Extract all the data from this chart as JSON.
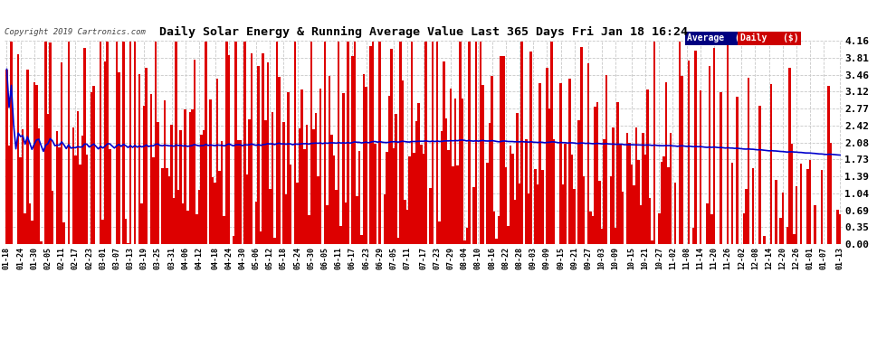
{
  "title": "Daily Solar Energy & Running Average Value Last 365 Days Fri Jan 18 16:24",
  "copyright": "Copyright 2019 Cartronics.com",
  "background_color": "#ffffff",
  "plot_background": "#ffffff",
  "grid_color": "#c8c8c8",
  "bar_color": "#dd0000",
  "line_color": "#0000cc",
  "ylim": [
    0.0,
    4.16
  ],
  "yticks": [
    0.0,
    0.35,
    0.69,
    1.04,
    1.39,
    1.73,
    2.08,
    2.42,
    2.77,
    3.12,
    3.46,
    3.81,
    4.16
  ],
  "legend_avg_bg": "#000080",
  "legend_daily_bg": "#cc0000",
  "legend_avg_text": "Average  ($)",
  "legend_daily_text": "Daily   ($)",
  "xtick_labels": [
    "01-18",
    "01-24",
    "01-30",
    "02-05",
    "02-11",
    "02-17",
    "02-23",
    "03-01",
    "03-07",
    "03-13",
    "03-19",
    "03-25",
    "03-31",
    "04-06",
    "04-12",
    "04-18",
    "04-24",
    "04-30",
    "05-06",
    "05-12",
    "05-18",
    "05-24",
    "05-30",
    "06-05",
    "06-11",
    "06-17",
    "06-23",
    "06-29",
    "07-05",
    "07-11",
    "07-17",
    "07-23",
    "07-29",
    "08-04",
    "08-10",
    "08-16",
    "08-22",
    "08-28",
    "09-03",
    "09-09",
    "09-15",
    "09-21",
    "09-27",
    "10-03",
    "10-09",
    "10-15",
    "10-21",
    "10-27",
    "11-02",
    "11-08",
    "11-14",
    "11-20",
    "11-26",
    "12-02",
    "12-08",
    "12-14",
    "12-20",
    "12-26",
    "01-01",
    "01-07",
    "01-13"
  ],
  "num_bars": 365,
  "figwidth": 9.9,
  "figheight": 3.75,
  "dpi": 100
}
